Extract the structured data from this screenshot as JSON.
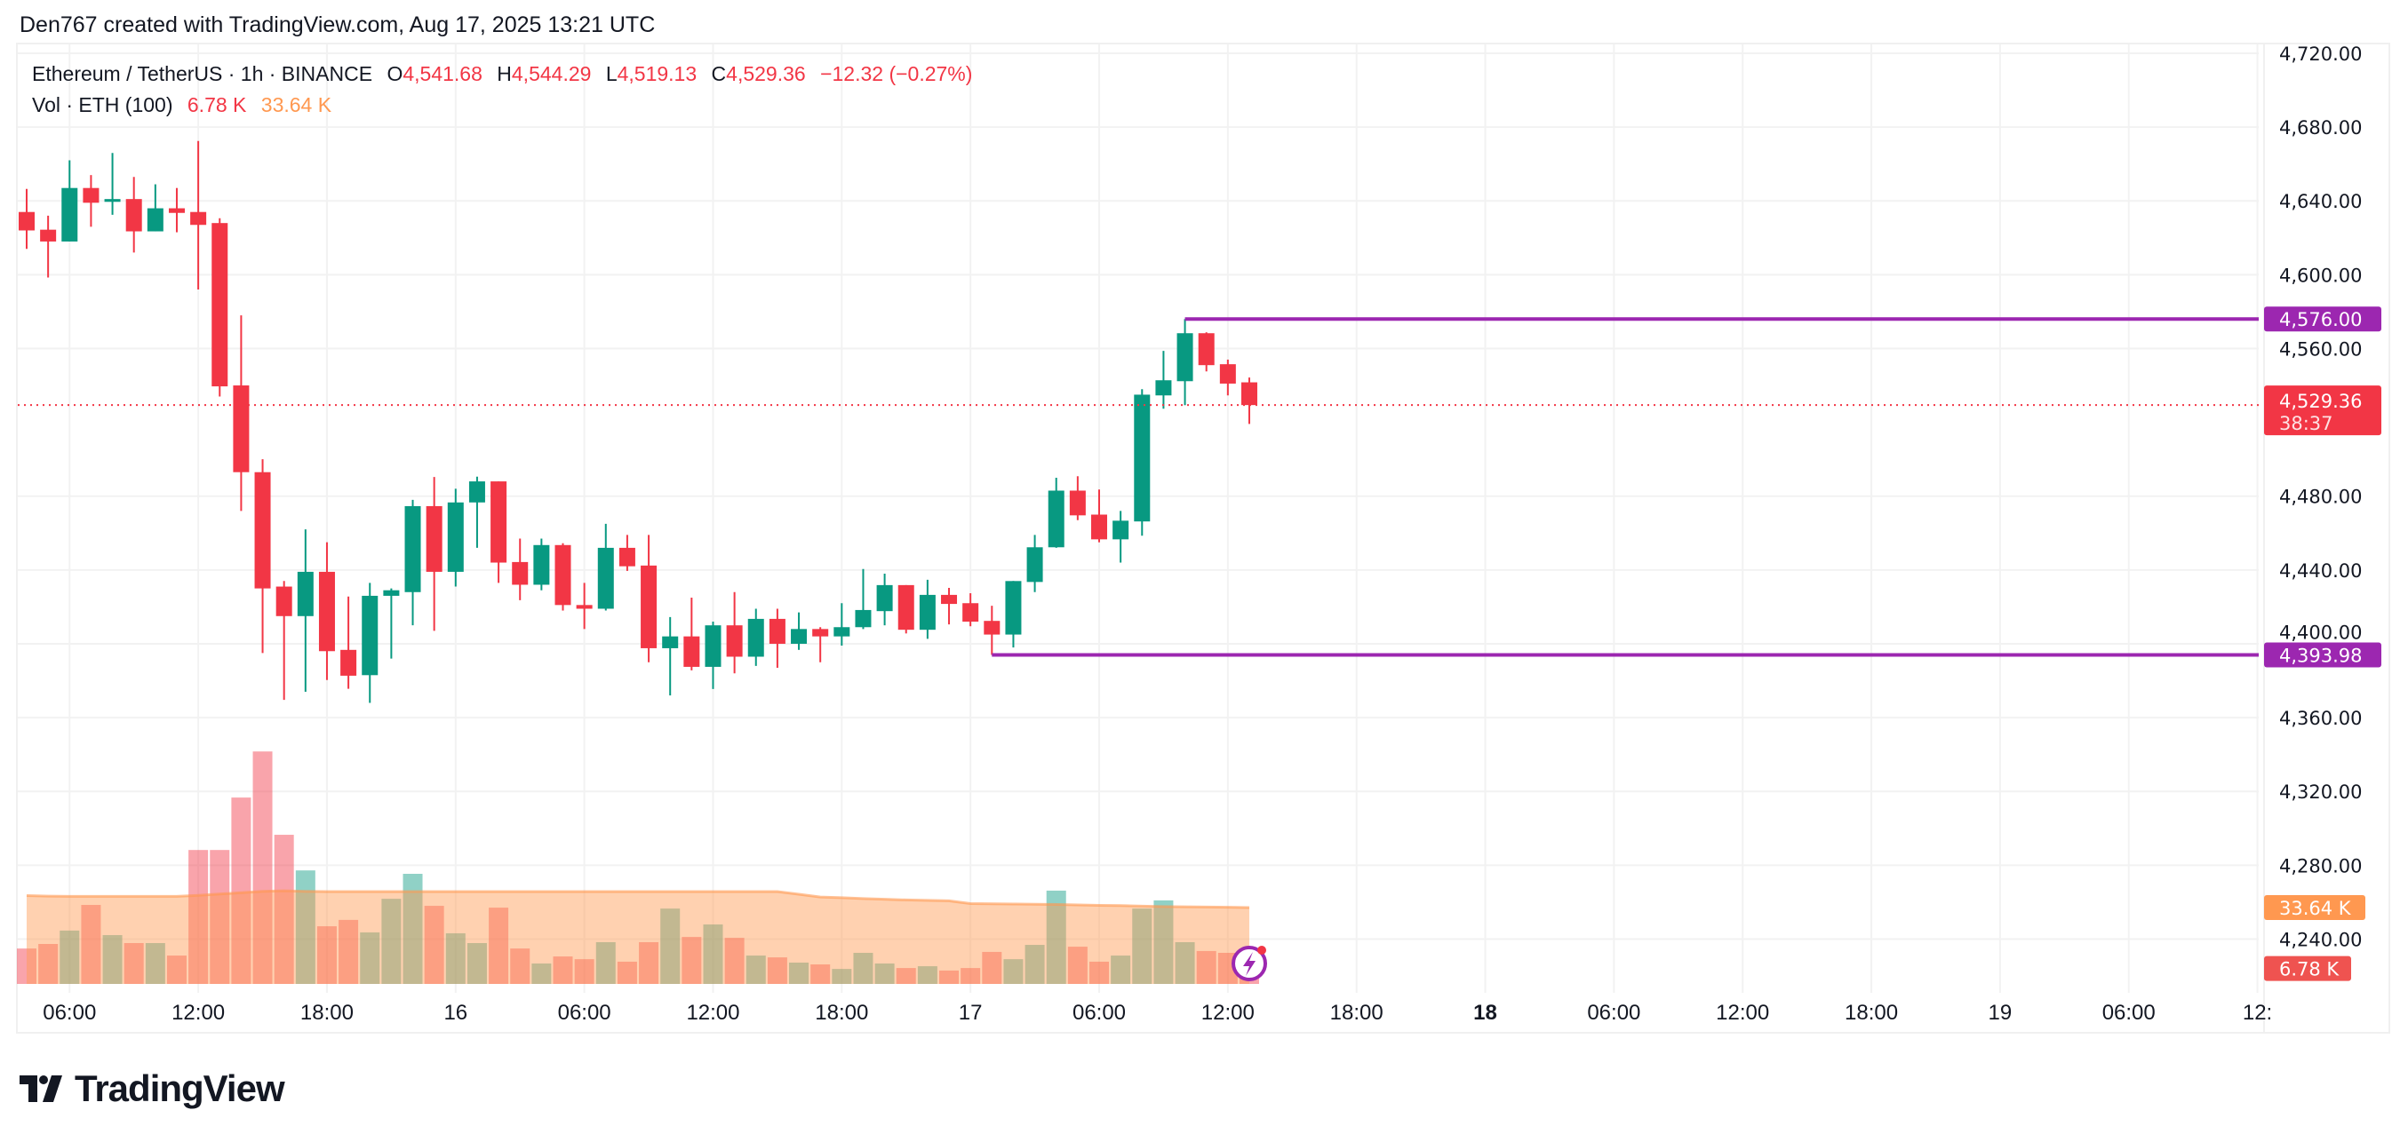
{
  "attribution": "Den767 created with TradingView.com, Aug 17, 2025 13:21 UTC",
  "legend": {
    "symbol": "Ethereum / TetherUS · 1h · BINANCE",
    "open_label": "O",
    "open": "4,541.68",
    "high_label": "H",
    "high": "4,544.29",
    "low_label": "L",
    "low": "4,519.13",
    "close_label": "C",
    "close": "4,529.36",
    "change": "−12.32 (−0.27%)",
    "vol_label": "Vol · ETH (100)",
    "vol_value": "6.78 K",
    "vol_ma": "33.64 K"
  },
  "logo_text": "TradingView",
  "colors": {
    "up": "#089981",
    "down": "#F23645",
    "level": "#9C27B0",
    "vol_ma": "#FF9850"
  },
  "chart_data": {
    "type": "candlestick",
    "interval": "1h",
    "first_bar": "Aug 15 04:00",
    "last_bar": "Aug 17 13:00",
    "y_ticks": [
      "4,720.00",
      "4,680.00",
      "4,640.00",
      "4,600.00",
      "4,560.00",
      "4,480.00",
      "4,440.00",
      "4,400.00",
      "4,360.00",
      "4,320.00",
      "4,280.00",
      "4,240.00"
    ],
    "y_tick_values": [
      4720,
      4680,
      4640,
      4600,
      4560,
      4480,
      4440,
      4400,
      4360,
      4320,
      4280,
      4240
    ],
    "ylim": [
      4216,
      4726
    ],
    "grid": true,
    "x_ticks": [
      {
        "label": "06:00",
        "bar": 2
      },
      {
        "label": "12:00",
        "bar": 8
      },
      {
        "label": "18:00",
        "bar": 14
      },
      {
        "label": "16",
        "bar": 20
      },
      {
        "label": "06:00",
        "bar": 26
      },
      {
        "label": "12:00",
        "bar": 32
      },
      {
        "label": "18:00",
        "bar": 38
      },
      {
        "label": "17",
        "bar": 44
      },
      {
        "label": "06:00",
        "bar": 50
      },
      {
        "label": "12:00",
        "bar": 56
      },
      {
        "label": "18:00",
        "bar": 62
      },
      {
        "label": "18",
        "bar": 68,
        "bold": true
      },
      {
        "label": "06:00",
        "bar": 74
      },
      {
        "label": "12:00",
        "bar": 80
      },
      {
        "label": "18:00",
        "bar": 86
      },
      {
        "label": "19",
        "bar": 92
      },
      {
        "label": "06:00",
        "bar": 98
      },
      {
        "label": "12:",
        "bar": 104
      }
    ],
    "ohlc": [
      [
        4634,
        4646.5,
        4614,
        4624
      ],
      [
        4624.4,
        4632,
        4598.5,
        4618
      ],
      [
        4618,
        4662,
        4618,
        4647
      ],
      [
        4647,
        4654,
        4626,
        4639
      ],
      [
        4639.5,
        4666,
        4632.5,
        4641
      ],
      [
        4641,
        4653,
        4612,
        4623.5
      ],
      [
        4623.5,
        4649,
        4623.5,
        4636
      ],
      [
        4636,
        4647,
        4623,
        4633.5
      ],
      [
        4634,
        4672.5,
        4592,
        4627
      ],
      [
        4628,
        4630.6,
        4534,
        4539.5
      ],
      [
        4540,
        4578,
        4472,
        4493
      ],
      [
        4493,
        4500,
        4395,
        4430
      ],
      [
        4431,
        4434,
        4369.6,
        4415
      ],
      [
        4415,
        4462,
        4374,
        4439
      ],
      [
        4439,
        4455,
        4380.4,
        4396
      ],
      [
        4396.7,
        4425.6,
        4375.6,
        4382.7
      ],
      [
        4383,
        4433,
        4368,
        4426
      ],
      [
        4426,
        4430,
        4392,
        4429
      ],
      [
        4428,
        4478,
        4410,
        4474.6
      ],
      [
        4474.6,
        4490.4,
        4407,
        4439
      ],
      [
        4439,
        4484,
        4431,
        4476.6
      ],
      [
        4476.6,
        4490.6,
        4452,
        4488
      ],
      [
        4488,
        4488,
        4433,
        4444
      ],
      [
        4444.3,
        4457,
        4423.6,
        4432
      ],
      [
        4432,
        4457,
        4429,
        4453.5
      ],
      [
        4453.5,
        4454.5,
        4418,
        4421
      ],
      [
        4421,
        4433,
        4408,
        4419
      ],
      [
        4419,
        4465,
        4418,
        4452
      ],
      [
        4452,
        4459,
        4439.5,
        4442
      ],
      [
        4442.4,
        4459,
        4390,
        4397.6
      ],
      [
        4397.6,
        4414.5,
        4372,
        4404
      ],
      [
        4404,
        4425,
        4385.6,
        4387.5
      ],
      [
        4387.5,
        4412,
        4375.5,
        4410
      ],
      [
        4410,
        4428,
        4384,
        4393
      ],
      [
        4393,
        4419,
        4388,
        4413.5
      ],
      [
        4413.5,
        4419,
        4387,
        4400
      ],
      [
        4400,
        4417,
        4396.7,
        4408
      ],
      [
        4408,
        4409,
        4390,
        4404
      ],
      [
        4404,
        4422,
        4399,
        4409
      ],
      [
        4409,
        4440.5,
        4408,
        4418.3
      ],
      [
        4417.7,
        4438,
        4410,
        4431.8
      ],
      [
        4431.8,
        4431.8,
        4405.6,
        4407.6
      ],
      [
        4407.6,
        4434.7,
        4402.7,
        4426.5
      ],
      [
        4426.5,
        4430.3,
        4410.5,
        4421.6
      ],
      [
        4422,
        4427.4,
        4409.5,
        4412
      ],
      [
        4412.4,
        4420.6,
        4393.98,
        4405
      ],
      [
        4405,
        4434,
        4398,
        4434
      ],
      [
        4433.5,
        4459,
        4428,
        4452.3
      ],
      [
        4452.3,
        4490,
        4452,
        4483
      ],
      [
        4483,
        4490.8,
        4467,
        4469.6
      ],
      [
        4470,
        4483.6,
        4455,
        4456.6
      ],
      [
        4456.6,
        4472,
        4444,
        4466.7
      ],
      [
        4466.3,
        4538,
        4458.6,
        4535
      ],
      [
        4534.6,
        4558.7,
        4527.4,
        4542.8
      ],
      [
        4542.3,
        4576,
        4529.3,
        4568.3
      ],
      [
        4568.3,
        4568.8,
        4547.6,
        4551
      ],
      [
        4551.5,
        4554,
        4534.6,
        4541
      ],
      [
        4541.68,
        4544.29,
        4519.13,
        4529.36
      ]
    ],
    "volume_k": [
      15.6,
      17.6,
      23.5,
      34.8,
      21.5,
      18.0,
      18.0,
      12.5,
      59.0,
      59.0,
      82.1,
      102.4,
      65.7,
      50.0,
      25.4,
      28.2,
      22.7,
      37.5,
      48.5,
      34.4,
      22.3,
      18.0,
      33.6,
      15.6,
      9.0,
      12.1,
      10.9,
      18.4,
      9.8,
      18.4,
      33.2,
      20.7,
      26.2,
      20.3,
      12.5,
      11.7,
      9.4,
      8.6,
      6.6,
      13.7,
      9.0,
      7.0,
      7.8,
      5.9,
      7.0,
      14.1,
      10.9,
      17.2,
      41.1,
      16.4,
      9.8,
      12.5,
      33.2,
      36.8,
      18.4,
      14.5,
      13.7,
      6.78
    ],
    "volume_ma_k": [
      38.9,
      38.7,
      38.6,
      38.6,
      38.6,
      38.6,
      38.6,
      38.6,
      39.0,
      39.6,
      40.2,
      40.8,
      41.0,
      40.8,
      40.7,
      40.7,
      40.7,
      40.7,
      40.7,
      40.7,
      40.7,
      40.7,
      40.7,
      40.7,
      40.7,
      40.7,
      40.7,
      40.7,
      40.7,
      40.7,
      40.7,
      40.7,
      40.7,
      40.7,
      40.7,
      40.7,
      39.5,
      38.3,
      38.0,
      37.6,
      37.3,
      37.0,
      36.8,
      36.6,
      35.4,
      35.3,
      35.2,
      35.1,
      35.0,
      34.8,
      34.6,
      34.5,
      34.3,
      34.1,
      34.0,
      33.9,
      33.8,
      33.64
    ],
    "levels": [
      {
        "price": 4576.0,
        "label": "4,576.00",
        "from_bar": 54
      },
      {
        "price": 4393.98,
        "label": "4,393.98",
        "from_bar": 45
      }
    ],
    "last_price": {
      "price": 4529.36,
      "label": "4,529.36",
      "countdown": "38:37"
    },
    "vol_tags": {
      "ma": "33.64 K",
      "vol": "6.78 K"
    }
  }
}
